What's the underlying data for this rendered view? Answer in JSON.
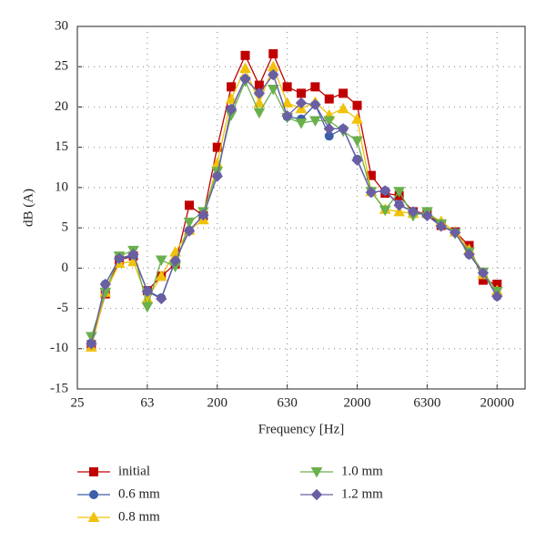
{
  "chart_data": {
    "type": "line",
    "xlabel": "Frequency [Hz]",
    "ylabel": "dB (A)",
    "categories": [
      "25",
      null,
      null,
      null,
      null,
      "63",
      null,
      null,
      null,
      null,
      "200",
      null,
      null,
      null,
      null,
      "630",
      null,
      null,
      null,
      null,
      "2000",
      null,
      null,
      null,
      null,
      "6300",
      null,
      null,
      null,
      null,
      "20000"
    ],
    "ylim": [
      -15,
      30
    ],
    "yticks": [
      -15,
      -10,
      -5,
      0,
      5,
      10,
      15,
      20,
      25,
      30
    ],
    "grid": true,
    "legend": "bottom",
    "series": [
      {
        "name": "initial",
        "color": "#c00000",
        "marker": "square",
        "values": [
          null,
          -9.5,
          -3.2,
          1.0,
          1.5,
          -2.8,
          -1.0,
          0.5,
          7.8,
          6.5,
          15.0,
          22.5,
          26.4,
          22.7,
          26.6,
          22.5,
          21.7,
          22.5,
          21.0,
          21.7,
          20.2,
          11.5,
          9.3,
          9.0,
          7.0,
          6.8,
          5.3,
          4.5,
          2.8,
          -1.5,
          -2.0
        ]
      },
      {
        "name": "0.6 mm",
        "color": "#3d5fa8",
        "marker": "circle",
        "values": [
          null,
          -9.3,
          -2.0,
          1.2,
          1.5,
          -2.8,
          -3.7,
          1.0,
          4.7,
          6.5,
          11.5,
          19.8,
          23.5,
          21.7,
          24.0,
          18.8,
          18.5,
          20.3,
          16.4,
          17.3,
          13.5,
          9.4,
          9.6,
          7.9,
          7.0,
          6.6,
          5.3,
          4.4,
          1.7,
          -0.6,
          -3.5
        ]
      },
      {
        "name": "0.8 mm",
        "color": "#f0c20a",
        "marker": "triangle-up",
        "values": [
          null,
          -9.8,
          -3.0,
          0.6,
          0.8,
          -3.8,
          -1.0,
          2.0,
          4.7,
          6.0,
          13.0,
          21.0,
          24.8,
          20.5,
          25.0,
          20.5,
          19.8,
          20.6,
          19.0,
          19.8,
          18.5,
          9.5,
          7.3,
          7.0,
          6.8,
          6.8,
          5.8,
          4.5,
          2.3,
          -0.8,
          -2.8
        ]
      },
      {
        "name": "1.0 mm",
        "color": "#6ab04c",
        "marker": "triangle-down",
        "values": [
          null,
          -8.5,
          -3.0,
          1.5,
          2.2,
          -4.8,
          1.0,
          0.2,
          5.7,
          7.0,
          12.0,
          19.0,
          23.2,
          19.3,
          22.2,
          18.7,
          18.0,
          18.3,
          18.3,
          17.0,
          15.8,
          9.5,
          7.2,
          9.5,
          6.5,
          7.0,
          5.5,
          4.3,
          2.0,
          -0.5,
          -2.9
        ]
      },
      {
        "name": "1.2 mm",
        "color": "#6a5fa3",
        "marker": "diamond",
        "values": [
          null,
          -9.4,
          -2.0,
          1.2,
          1.7,
          -2.9,
          -3.8,
          0.9,
          4.6,
          6.6,
          11.4,
          19.7,
          23.5,
          21.7,
          24.0,
          18.9,
          20.5,
          20.3,
          17.3,
          17.3,
          13.4,
          9.4,
          9.6,
          7.8,
          7.0,
          6.5,
          5.2,
          4.4,
          1.7,
          -0.6,
          -3.5
        ]
      }
    ]
  }
}
